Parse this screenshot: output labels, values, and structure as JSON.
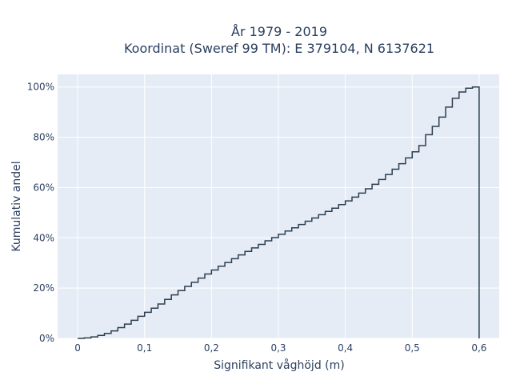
{
  "chart_data": {
    "type": "line",
    "subtype": "ecdf-step",
    "title_line1": "År 1979 - 2019",
    "title_line2": "Koordinat (Sweref 99 TM): E 379104, N 6137621",
    "xlabel": "Signifikant våghöjd (m)",
    "ylabel": "Kumulativ andel",
    "xlim": [
      -0.03,
      0.63
    ],
    "ylim": [
      0,
      1.05
    ],
    "x_ticks": [
      0,
      0.1,
      0.2,
      0.3,
      0.4,
      0.5,
      0.6
    ],
    "x_tick_labels": [
      "0",
      "0,1",
      "0,2",
      "0,3",
      "0,4",
      "0,5",
      "0,6"
    ],
    "y_ticks": [
      0,
      0.2,
      0.4,
      0.6,
      0.8,
      1.0
    ],
    "y_tick_labels": [
      "0%",
      "20%",
      "40%",
      "60%",
      "80%",
      "100%"
    ],
    "grid": true,
    "legend": "none",
    "bin_width": 0.01,
    "x": [
      0,
      0.01,
      0.02,
      0.03,
      0.04,
      0.05,
      0.06,
      0.07,
      0.08,
      0.09,
      0.1,
      0.11,
      0.12,
      0.13,
      0.14,
      0.15,
      0.16,
      0.17,
      0.18,
      0.19,
      0.2,
      0.21,
      0.22,
      0.23,
      0.24,
      0.25,
      0.26,
      0.27,
      0.28,
      0.29,
      0.3,
      0.31,
      0.32,
      0.33,
      0.34,
      0.35,
      0.36,
      0.37,
      0.38,
      0.39,
      0.4,
      0.41,
      0.42,
      0.43,
      0.44,
      0.45,
      0.46,
      0.47,
      0.48,
      0.49,
      0.5,
      0.51,
      0.52,
      0.53,
      0.54,
      0.55,
      0.56,
      0.57,
      0.58,
      0.59,
      0.6
    ],
    "y": [
      0,
      0.002,
      0.006,
      0.012,
      0.02,
      0.03,
      0.043,
      0.057,
      0.072,
      0.088,
      0.104,
      0.12,
      0.137,
      0.155,
      0.173,
      0.19,
      0.207,
      0.223,
      0.24,
      0.256,
      0.272,
      0.287,
      0.302,
      0.317,
      0.332,
      0.346,
      0.36,
      0.374,
      0.388,
      0.401,
      0.414,
      0.427,
      0.44,
      0.453,
      0.466,
      0.479,
      0.492,
      0.505,
      0.518,
      0.532,
      0.547,
      0.562,
      0.578,
      0.595,
      0.613,
      0.632,
      0.652,
      0.673,
      0.695,
      0.718,
      0.742,
      0.767,
      0.81,
      0.843,
      0.88,
      0.92,
      0.955,
      0.98,
      0.995,
      1.0,
      1.0
    ],
    "colors": {
      "plot_bg": "#e5ecf6",
      "grid": "#ffffff",
      "line": "#2d3e50",
      "text": "#2a3f5f"
    }
  }
}
